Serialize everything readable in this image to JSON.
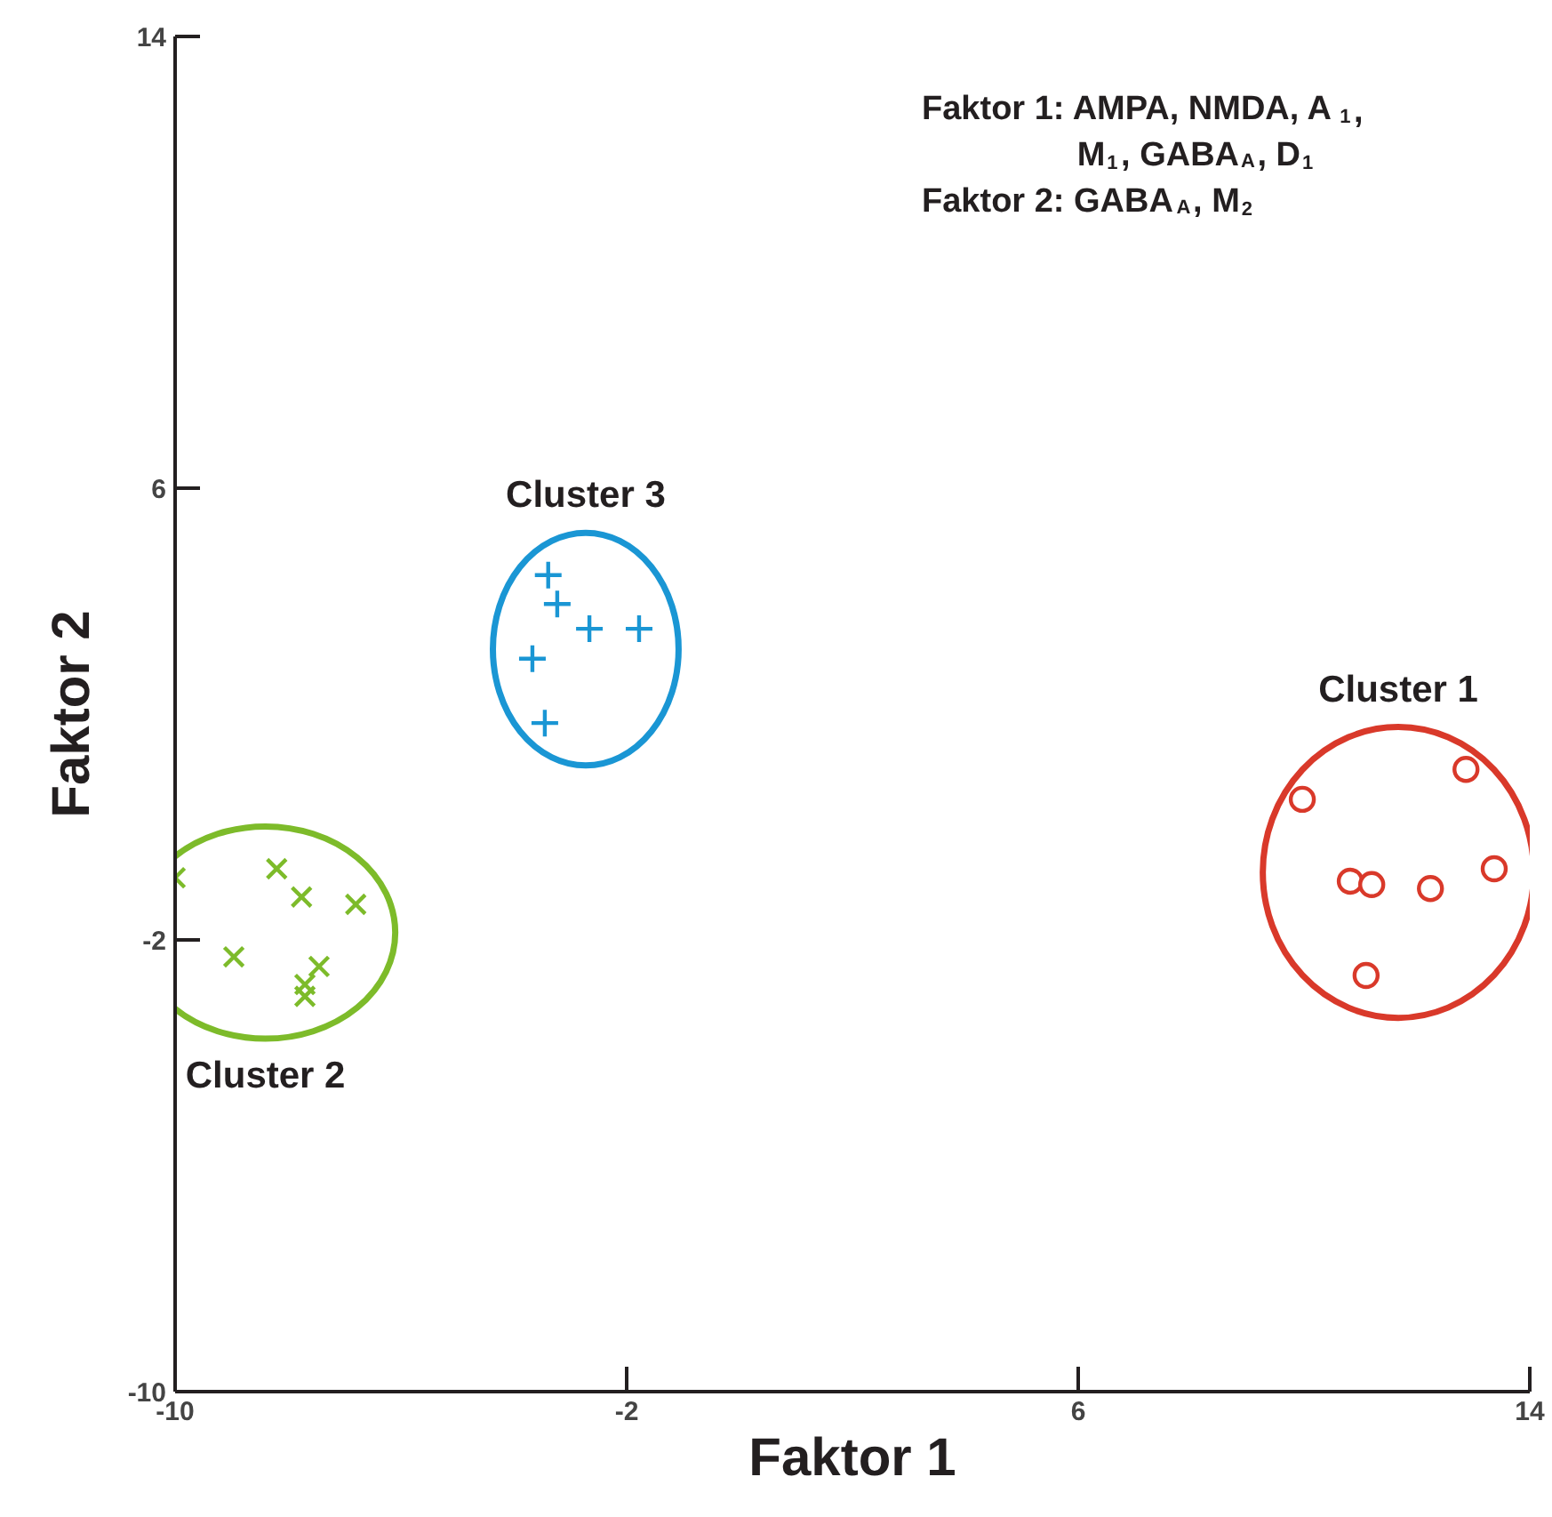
{
  "chart_data": {
    "type": "scatter",
    "xlabel": "Faktor 1",
    "ylabel": "Faktor 2",
    "xlim": [
      -10,
      14
    ],
    "ylim": [
      -10,
      14
    ],
    "xticks": [
      -10,
      -2,
      6,
      14
    ],
    "yticks": [
      -10,
      -2,
      6,
      14
    ],
    "grid": false,
    "series": [
      {
        "name": "Cluster 1",
        "color": "#d9392a",
        "marker": "circle",
        "x": [
          9.97,
          12.87,
          10.82,
          11.2,
          12.24,
          13.37,
          11.1
        ],
        "values": [
          0.49,
          1.02,
          -0.96,
          -1.02,
          -1.09,
          -0.74,
          -2.63
        ]
      },
      {
        "name": "Cluster 2",
        "color": "#7dbb2a",
        "marker": "x",
        "x": [
          -10.0,
          -8.2,
          -7.76,
          -6.8,
          -8.96,
          -7.45,
          -7.7,
          -7.7
        ],
        "values": [
          -0.9,
          -0.74,
          -1.24,
          -1.37,
          -2.3,
          -2.47,
          -2.79,
          -3.0
        ]
      },
      {
        "name": "Cluster 3",
        "color": "#1a96d4",
        "marker": "cross",
        "x": [
          -3.39,
          -3.23,
          -2.66,
          -1.78,
          -3.67,
          -3.45
        ],
        "values": [
          4.46,
          3.95,
          3.51,
          3.51,
          2.98,
          1.84
        ]
      }
    ],
    "annotations": [
      "Faktor 1: AMPA, NMDA, A$_{1}$,",
      "M$_{1}$, GABA$_{A}$, D$_{1}$",
      "Faktor 2: GABA$_{A}$, M$_{2}$"
    ]
  }
}
